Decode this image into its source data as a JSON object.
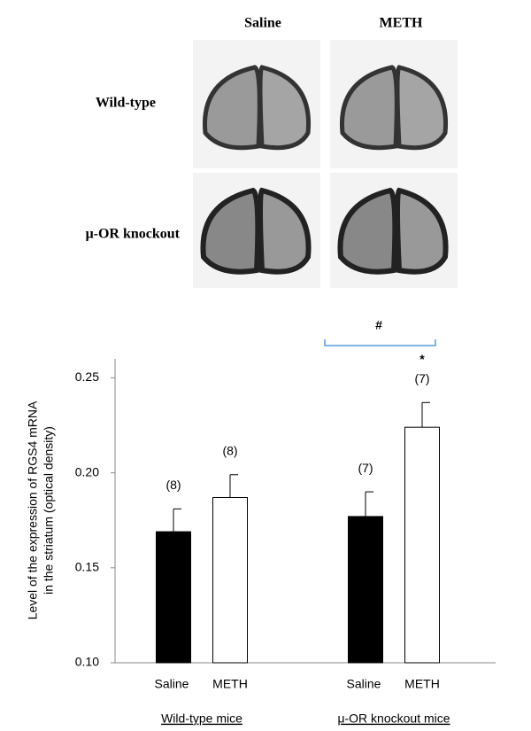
{
  "images": {
    "columns": [
      "Saline",
      "METH"
    ],
    "rows": [
      "Wild-type",
      "μ-OR knockout"
    ]
  },
  "chart_data": {
    "type": "bar",
    "ylabel": [
      "Level of the expression of RGS4 mRNA",
      "in the striatum (optical density)"
    ],
    "categories": [
      "Wild-type mice",
      "μ-OR knockout mice"
    ],
    "series": [
      {
        "name": "Saline",
        "color": "#000000",
        "values": [
          0.169,
          0.177
        ],
        "errors": [
          0.012,
          0.013
        ],
        "n_labels": [
          "(8)",
          "(7)"
        ]
      },
      {
        "name": "METH",
        "color": "#ffffff",
        "values": [
          0.187,
          0.224
        ],
        "errors": [
          0.012,
          0.013
        ],
        "n_labels": [
          "(8)",
          "(7)"
        ]
      }
    ],
    "ylim": [
      0.1,
      0.26
    ],
    "yticks": [
      {
        "value": 0.1,
        "label": "0.10"
      },
      0.15,
      {
        "value": 0.2,
        "label": "0.20"
      },
      0.25
    ],
    "annotations": {
      "star": "*",
      "hash": "#"
    }
  }
}
